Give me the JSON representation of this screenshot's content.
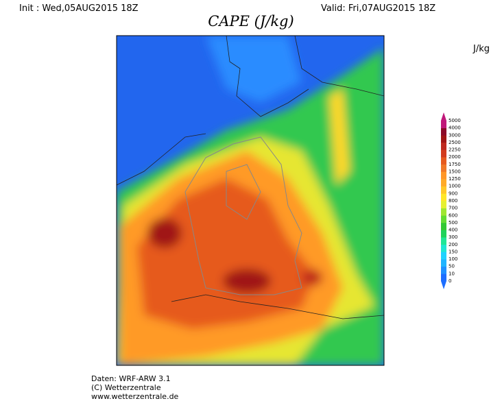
{
  "header": {
    "init": "Init : Wed,05AUG2015 18Z",
    "valid": "Valid: Fri,07AUG2015 18Z",
    "title": "CAPE (J/kg)"
  },
  "legend": {
    "unit": "J/kg",
    "levels": [
      0,
      10,
      50,
      100,
      150,
      200,
      300,
      400,
      500,
      600,
      700,
      800,
      900,
      1000,
      1250,
      1500,
      1750,
      2000,
      2250,
      2500,
      3000,
      4000,
      5000
    ],
    "colors": [
      "#1e6eff",
      "#2090ff",
      "#20b4ff",
      "#20d2ff",
      "#20e6d2",
      "#20e696",
      "#20d25a",
      "#32c832",
      "#64dc32",
      "#a0e632",
      "#e6f032",
      "#ffe628",
      "#ffc828",
      "#ffaa28",
      "#ff9628",
      "#f07828",
      "#e65a1e",
      "#d23c1e",
      "#be281e",
      "#a01414",
      "#8c0a28",
      "#c0187a"
    ]
  },
  "footer": [
    "Daten: WRF-ARW 3.1",
    "(C) Wetterzentrale",
    "www.wetterzentrale.de"
  ]
}
